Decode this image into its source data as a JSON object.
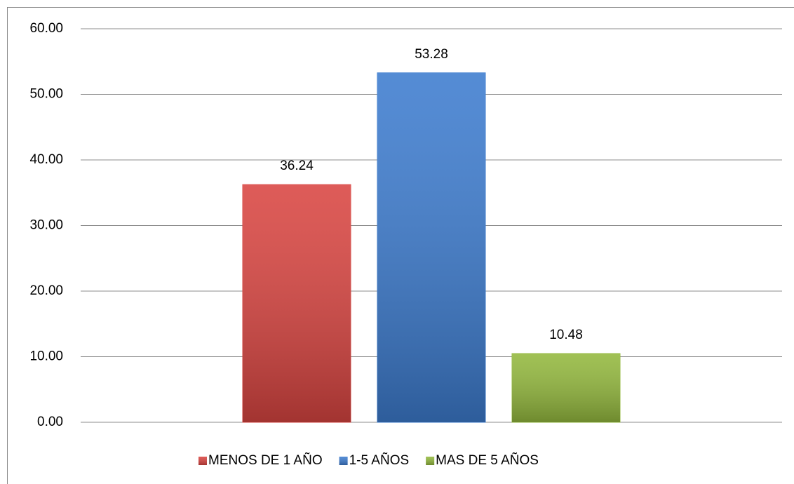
{
  "chart_data": {
    "type": "bar",
    "categories": [
      null
    ],
    "series": [
      {
        "name": "MENOS DE 1 AÑO",
        "color": "#d94541",
        "values": [
          36.24
        ]
      },
      {
        "name": "1-5 AÑOS",
        "color": "#3d7ccf",
        "values": [
          53.28
        ]
      },
      {
        "name": "MAS DE 5 AÑOS",
        "color": "#93b83d",
        "values": [
          10.48
        ]
      }
    ],
    "ylim": [
      0,
      60
    ],
    "yticks": [
      {
        "value": 0,
        "label": "0.00"
      },
      {
        "value": 10,
        "label": "10.00"
      },
      {
        "value": 20,
        "label": "20.00"
      },
      {
        "value": 30,
        "label": "30.00"
      },
      {
        "value": 40,
        "label": "40.00"
      },
      {
        "value": 50,
        "label": "50.00"
      },
      {
        "value": 60,
        "label": "60.00"
      }
    ],
    "grid": true,
    "legend": "bottom"
  }
}
